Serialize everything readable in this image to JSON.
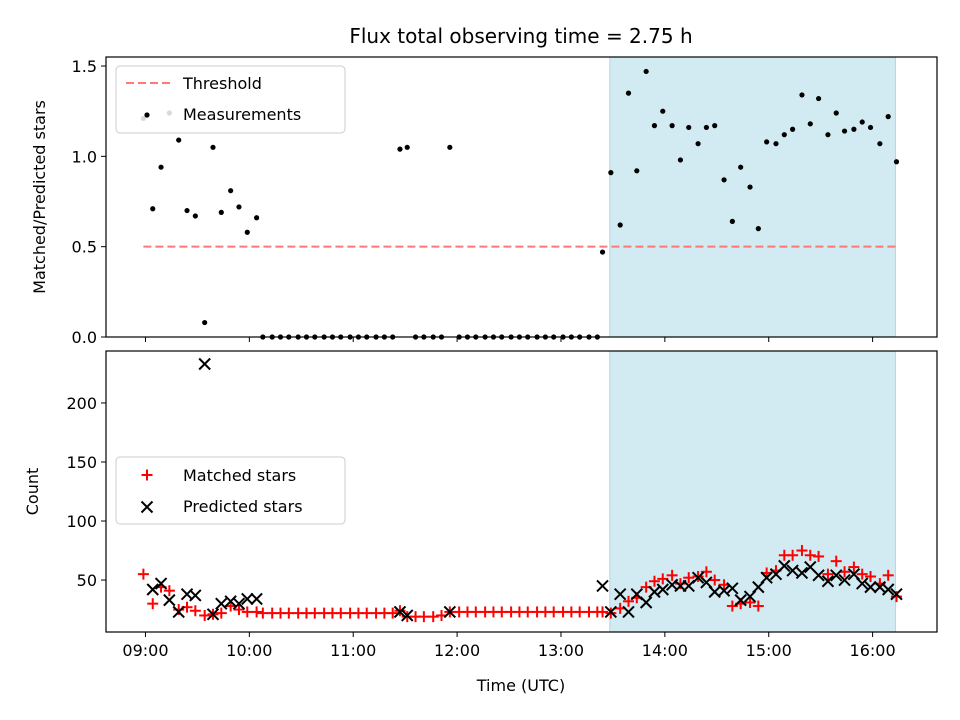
{
  "chart_data": {
    "type": "scatter",
    "title": "Flux total observing time = 2.75 h",
    "xlabel": "Time (UTC)",
    "x_ticks": [
      "09:00",
      "10:00",
      "11:00",
      "12:00",
      "13:00",
      "14:00",
      "15:00",
      "16:00"
    ],
    "x_tick_hours": [
      9,
      10,
      11,
      12,
      13,
      14,
      15,
      16
    ],
    "xlim_hours": [
      8.62,
      16.62
    ],
    "highlight_span_hours": [
      13.47,
      16.22
    ],
    "colors": {
      "threshold": "#ff7777",
      "measurement": "#000000",
      "matched": "#ff0000",
      "predicted": "#000000",
      "highlight": "#add8e6"
    },
    "top_panel": {
      "ylabel": "Matched/Predicted stars",
      "ylim": [
        0,
        1.55
      ],
      "y_ticks": [
        "0.0",
        "0.5",
        "1.0",
        "1.5"
      ],
      "y_tick_values": [
        0,
        0.5,
        1.0,
        1.5
      ],
      "legend": {
        "position": "upper-left",
        "entries": [
          "Threshold",
          "Measurements"
        ]
      },
      "threshold": {
        "name": "Threshold",
        "y": 0.5,
        "x_range_hours": [
          8.98,
          16.22
        ]
      },
      "measurements": {
        "name": "Measurements",
        "x_hours": [
          8.98,
          9.07,
          9.15,
          9.23,
          9.32,
          9.4,
          9.48,
          9.57,
          9.65,
          9.73,
          9.82,
          9.9,
          9.98,
          10.07,
          10.13,
          10.22,
          10.3,
          10.38,
          10.47,
          10.55,
          10.63,
          10.72,
          10.8,
          10.88,
          10.97,
          11.05,
          11.13,
          11.22,
          11.3,
          11.38,
          11.45,
          11.52,
          11.6,
          11.68,
          11.77,
          11.85,
          11.93,
          12.02,
          12.1,
          12.18,
          12.27,
          12.35,
          12.43,
          12.52,
          12.6,
          12.68,
          12.77,
          12.85,
          12.93,
          13.02,
          13.1,
          13.18,
          13.27,
          13.35,
          13.4,
          13.48,
          13.57,
          13.65,
          13.73,
          13.82,
          13.9,
          13.98,
          14.07,
          14.15,
          14.23,
          14.32,
          14.4,
          14.48,
          14.57,
          14.65,
          14.73,
          14.82,
          14.9,
          14.98,
          15.07,
          15.15,
          15.23,
          15.32,
          15.4,
          15.48,
          15.57,
          15.65,
          15.73,
          15.82,
          15.9,
          15.98,
          16.07,
          16.15,
          16.23
        ],
        "y": [
          1.21,
          0.71,
          0.94,
          1.24,
          1.09,
          0.7,
          0.67,
          0.08,
          1.05,
          0.69,
          0.81,
          0.72,
          0.58,
          0.66,
          0.0,
          0.0,
          0.0,
          0.0,
          0.0,
          0.0,
          0.0,
          0.0,
          0.0,
          0.0,
          0.0,
          0.0,
          0.0,
          0.0,
          0.0,
          0.0,
          1.04,
          1.05,
          0.0,
          0.0,
          0.0,
          0.0,
          1.05,
          0.0,
          0.0,
          0.0,
          0.0,
          0.0,
          0.0,
          0.0,
          0.0,
          0.0,
          0.0,
          0.0,
          0.0,
          0.0,
          0.0,
          0.0,
          0.0,
          0.0,
          0.47,
          0.91,
          0.62,
          1.35,
          0.92,
          1.47,
          1.17,
          1.25,
          1.17,
          0.98,
          1.16,
          1.07,
          1.16,
          1.17,
          0.87,
          0.64,
          0.94,
          0.83,
          0.6,
          1.08,
          1.07,
          1.12,
          1.15,
          1.34,
          1.18,
          1.32,
          1.12,
          1.24,
          1.14,
          1.15,
          1.19,
          1.16,
          1.07,
          1.22,
          0.97
        ]
      }
    },
    "bottom_panel": {
      "ylabel": "Count",
      "ylim": [
        6,
        244
      ],
      "y_ticks": [
        "50",
        "100",
        "150",
        "200"
      ],
      "y_tick_values": [
        50,
        100,
        150,
        200
      ],
      "legend": {
        "position": "center-left",
        "entries": [
          "Matched stars",
          "Predicted stars"
        ]
      },
      "matched": {
        "name": "Matched stars",
        "x_hours": [
          8.98,
          9.07,
          9.15,
          9.23,
          9.32,
          9.4,
          9.48,
          9.57,
          9.65,
          9.73,
          9.82,
          9.9,
          9.98,
          10.07,
          10.13,
          10.22,
          10.3,
          10.38,
          10.47,
          10.55,
          10.63,
          10.72,
          10.8,
          10.88,
          10.97,
          11.05,
          11.13,
          11.22,
          11.3,
          11.38,
          11.45,
          11.52,
          11.6,
          11.68,
          11.77,
          11.85,
          11.93,
          12.02,
          12.1,
          12.18,
          12.27,
          12.35,
          12.43,
          12.52,
          12.6,
          12.68,
          12.77,
          12.85,
          12.93,
          13.02,
          13.1,
          13.18,
          13.27,
          13.35,
          13.4,
          13.48,
          13.57,
          13.65,
          13.73,
          13.82,
          13.9,
          13.98,
          14.07,
          14.15,
          14.23,
          14.32,
          14.4,
          14.48,
          14.57,
          14.65,
          14.73,
          14.82,
          14.9,
          14.98,
          15.07,
          15.15,
          15.23,
          15.32,
          15.4,
          15.48,
          15.57,
          15.65,
          15.73,
          15.82,
          15.9,
          15.98,
          16.07,
          16.15,
          16.23
        ],
        "y": [
          55,
          30,
          44,
          41,
          25,
          27,
          24,
          20,
          21,
          22,
          28,
          25,
          23,
          23,
          22,
          22,
          22,
          22,
          22,
          22,
          22,
          22,
          22,
          22,
          22,
          22,
          22,
          22,
          22,
          22,
          24,
          19,
          19,
          19,
          19,
          20,
          23,
          23,
          23,
          23,
          23,
          23,
          23,
          23,
          23,
          23,
          23,
          23,
          23,
          23,
          23,
          23,
          23,
          23,
          23,
          22,
          26,
          32,
          35,
          44,
          49,
          51,
          54,
          47,
          52,
          53,
          57,
          50,
          46,
          28,
          30,
          31,
          28,
          56,
          58,
          71,
          71,
          75,
          71,
          70,
          55,
          66,
          57,
          61,
          55,
          53,
          47,
          54,
          36
        ]
      },
      "predicted": {
        "name": "Predicted stars",
        "x_hours": [
          9.07,
          9.15,
          9.23,
          9.32,
          9.4,
          9.48,
          9.57,
          9.65,
          9.73,
          9.82,
          9.9,
          9.98,
          10.07,
          11.45,
          11.52,
          11.93,
          13.4,
          13.48,
          13.57,
          13.65,
          13.73,
          13.82,
          13.9,
          13.98,
          14.07,
          14.15,
          14.23,
          14.32,
          14.4,
          14.48,
          14.57,
          14.65,
          14.73,
          14.82,
          14.9,
          14.98,
          15.07,
          15.15,
          15.23,
          15.32,
          15.4,
          15.48,
          15.57,
          15.65,
          15.73,
          15.82,
          15.9,
          15.98,
          16.07,
          16.15,
          16.23
        ],
        "y": [
          42,
          47,
          33,
          23,
          38,
          37,
          233,
          21,
          30,
          32,
          30,
          34,
          34,
          23,
          20,
          23,
          45,
          23,
          38,
          23,
          38,
          31,
          40,
          42,
          46,
          45,
          45,
          52,
          48,
          40,
          41,
          43,
          33,
          36,
          44,
          52,
          55,
          62,
          58,
          56,
          61,
          54,
          49,
          54,
          50,
          55,
          47,
          44,
          44,
          42,
          38
        ]
      }
    }
  }
}
